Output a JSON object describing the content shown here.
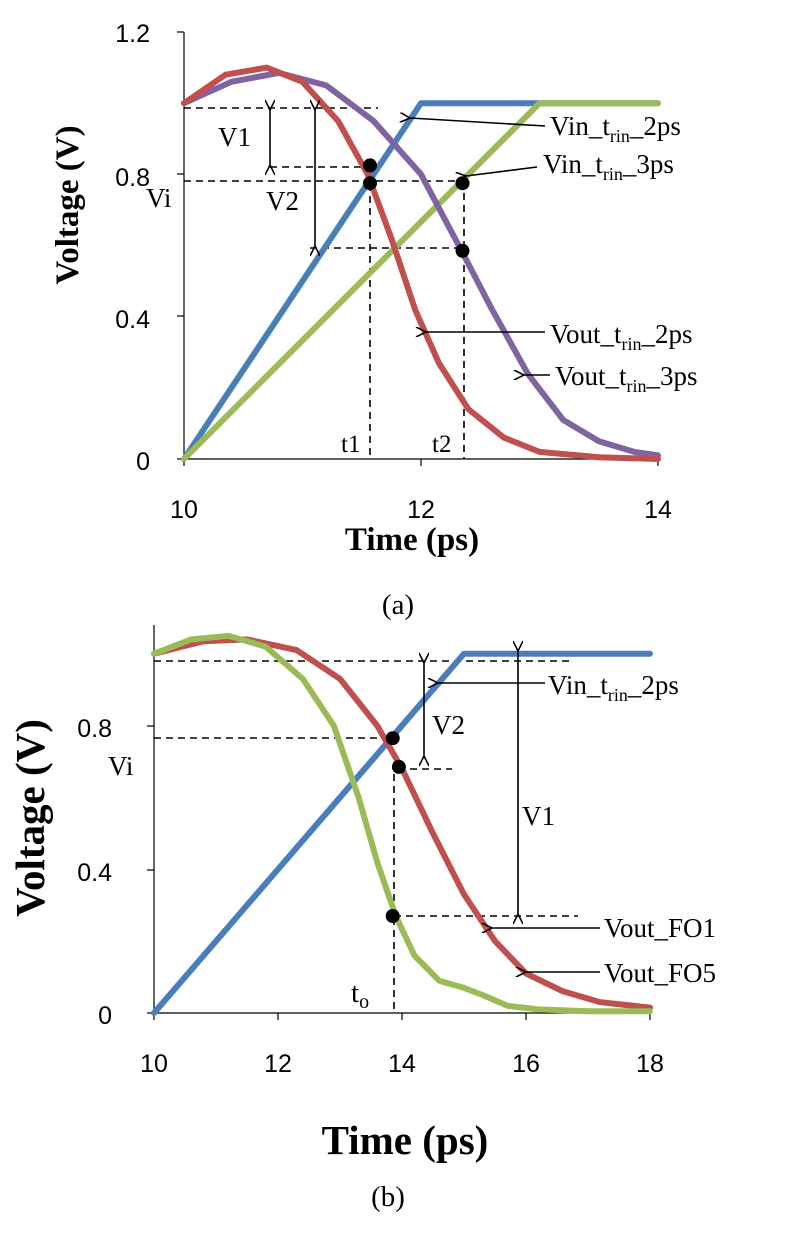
{
  "colors": {
    "blue": "#4a7ebb",
    "red": "#c0504d",
    "purple": "#8064a2",
    "green": "#9bbb59"
  },
  "chart_data": [
    {
      "type": "line",
      "caption": "(a)",
      "title": "",
      "xlabel": "Time (ps)",
      "ylabel": "Voltage (V)",
      "xlim": [
        10,
        14
      ],
      "ylim": [
        0,
        1.2
      ],
      "xticks": [
        "10",
        "12",
        "14"
      ],
      "yticks": [
        "0",
        "0.4",
        "0.8",
        "1.2"
      ],
      "grid": false,
      "series": [
        {
          "name": "Vin_t_rin_2ps",
          "color": "blue",
          "x": [
            10,
            12,
            14
          ],
          "y": [
            0,
            1.0,
            1.0
          ]
        },
        {
          "name": "Vin_t_rin_3ps",
          "color": "green",
          "x": [
            10,
            13,
            14
          ],
          "y": [
            0,
            1.0,
            1.0
          ]
        },
        {
          "name": "Vout_t_rin_3ps",
          "color": "purple",
          "x": [
            10,
            10.4,
            10.8,
            11.2,
            11.6,
            12.0,
            12.35,
            12.6,
            12.9,
            13.2,
            13.5,
            13.8,
            14.0
          ],
          "y": [
            1.0,
            1.06,
            1.085,
            1.05,
            0.95,
            0.8,
            0.58,
            0.42,
            0.24,
            0.11,
            0.05,
            0.02,
            0.01
          ]
        },
        {
          "name": "Vout_t_rin_2ps",
          "color": "red",
          "x": [
            10,
            10.35,
            10.7,
            11.0,
            11.3,
            11.55,
            11.75,
            11.95,
            12.15,
            12.4,
            12.7,
            13.0,
            13.5,
            14.0
          ],
          "y": [
            1.0,
            1.08,
            1.1,
            1.06,
            0.95,
            0.8,
            0.62,
            0.42,
            0.27,
            0.14,
            0.06,
            0.02,
            0.005,
            0.0
          ]
        }
      ],
      "points": [
        {
          "x": 11.57,
          "y": 0.825
        },
        {
          "x": 11.57,
          "y": 0.775
        },
        {
          "x": 12.35,
          "y": 0.775
        },
        {
          "x": 12.35,
          "y": 0.585
        }
      ],
      "annotations": {
        "labels": [
          "V1",
          "V2",
          "Vi",
          "t1",
          "t2"
        ],
        "legend": [
          {
            "main": "Vin_t",
            "sub": "rin",
            "end": "_2ps"
          },
          {
            "main": "Vin_t",
            "sub": "rin",
            "end": "_3ps"
          },
          {
            "main": "Vout_t",
            "sub": "rin",
            "end": "_2ps"
          },
          {
            "main": "Vout_t",
            "sub": "rin",
            "end": "_3ps"
          }
        ]
      }
    },
    {
      "type": "line",
      "caption": "(b)",
      "title": "",
      "xlabel": "Time (ps)",
      "ylabel": "Voltage (V)",
      "xlim": [
        10,
        18
      ],
      "ylim": [
        0,
        1.08
      ],
      "xticks": [
        "10",
        "12",
        "14",
        "16",
        "18"
      ],
      "yticks": [
        "0",
        "0.4",
        "0.8"
      ],
      "grid": false,
      "series": [
        {
          "name": "Vin_t_rin_2ps",
          "color": "blue",
          "x": [
            10,
            15,
            18
          ],
          "y": [
            0,
            1.0,
            1.0
          ]
        },
        {
          "name": "Vout_FO1",
          "color": "red",
          "x": [
            10,
            10.8,
            11.5,
            12.3,
            13.0,
            13.6,
            14.0,
            14.5,
            15.0,
            15.5,
            16.0,
            16.6,
            17.2,
            18.0
          ],
          "y": [
            1.0,
            1.035,
            1.04,
            1.01,
            0.93,
            0.8,
            0.68,
            0.5,
            0.33,
            0.2,
            0.11,
            0.06,
            0.03,
            0.015
          ]
        },
        {
          "name": "Vout_FO5",
          "color": "green",
          "x": [
            10,
            10.6,
            11.2,
            11.8,
            12.4,
            12.9,
            13.3,
            13.6,
            13.9,
            14.2,
            14.6,
            15.0,
            15.3,
            15.7,
            16.2,
            17.0,
            18.0
          ],
          "y": [
            1.0,
            1.04,
            1.05,
            1.02,
            0.93,
            0.8,
            0.6,
            0.42,
            0.27,
            0.16,
            0.09,
            0.07,
            0.05,
            0.02,
            0.01,
            0.005,
            0.005
          ]
        }
      ],
      "points": [
        {
          "x": 13.85,
          "y": 0.765
        },
        {
          "x": 13.95,
          "y": 0.685
        },
        {
          "x": 13.85,
          "y": 0.27
        }
      ],
      "annotations": {
        "labels": [
          "V2",
          "V1",
          "Vi",
          "t"
        ],
        "t_sub": "o",
        "legend": [
          {
            "main": "Vin_t",
            "sub": "rin",
            "end": "_2ps"
          },
          {
            "main": "Vout_FO1",
            "sub": "",
            "end": ""
          },
          {
            "main": "Vout_FO5",
            "sub": "",
            "end": ""
          }
        ]
      }
    }
  ]
}
